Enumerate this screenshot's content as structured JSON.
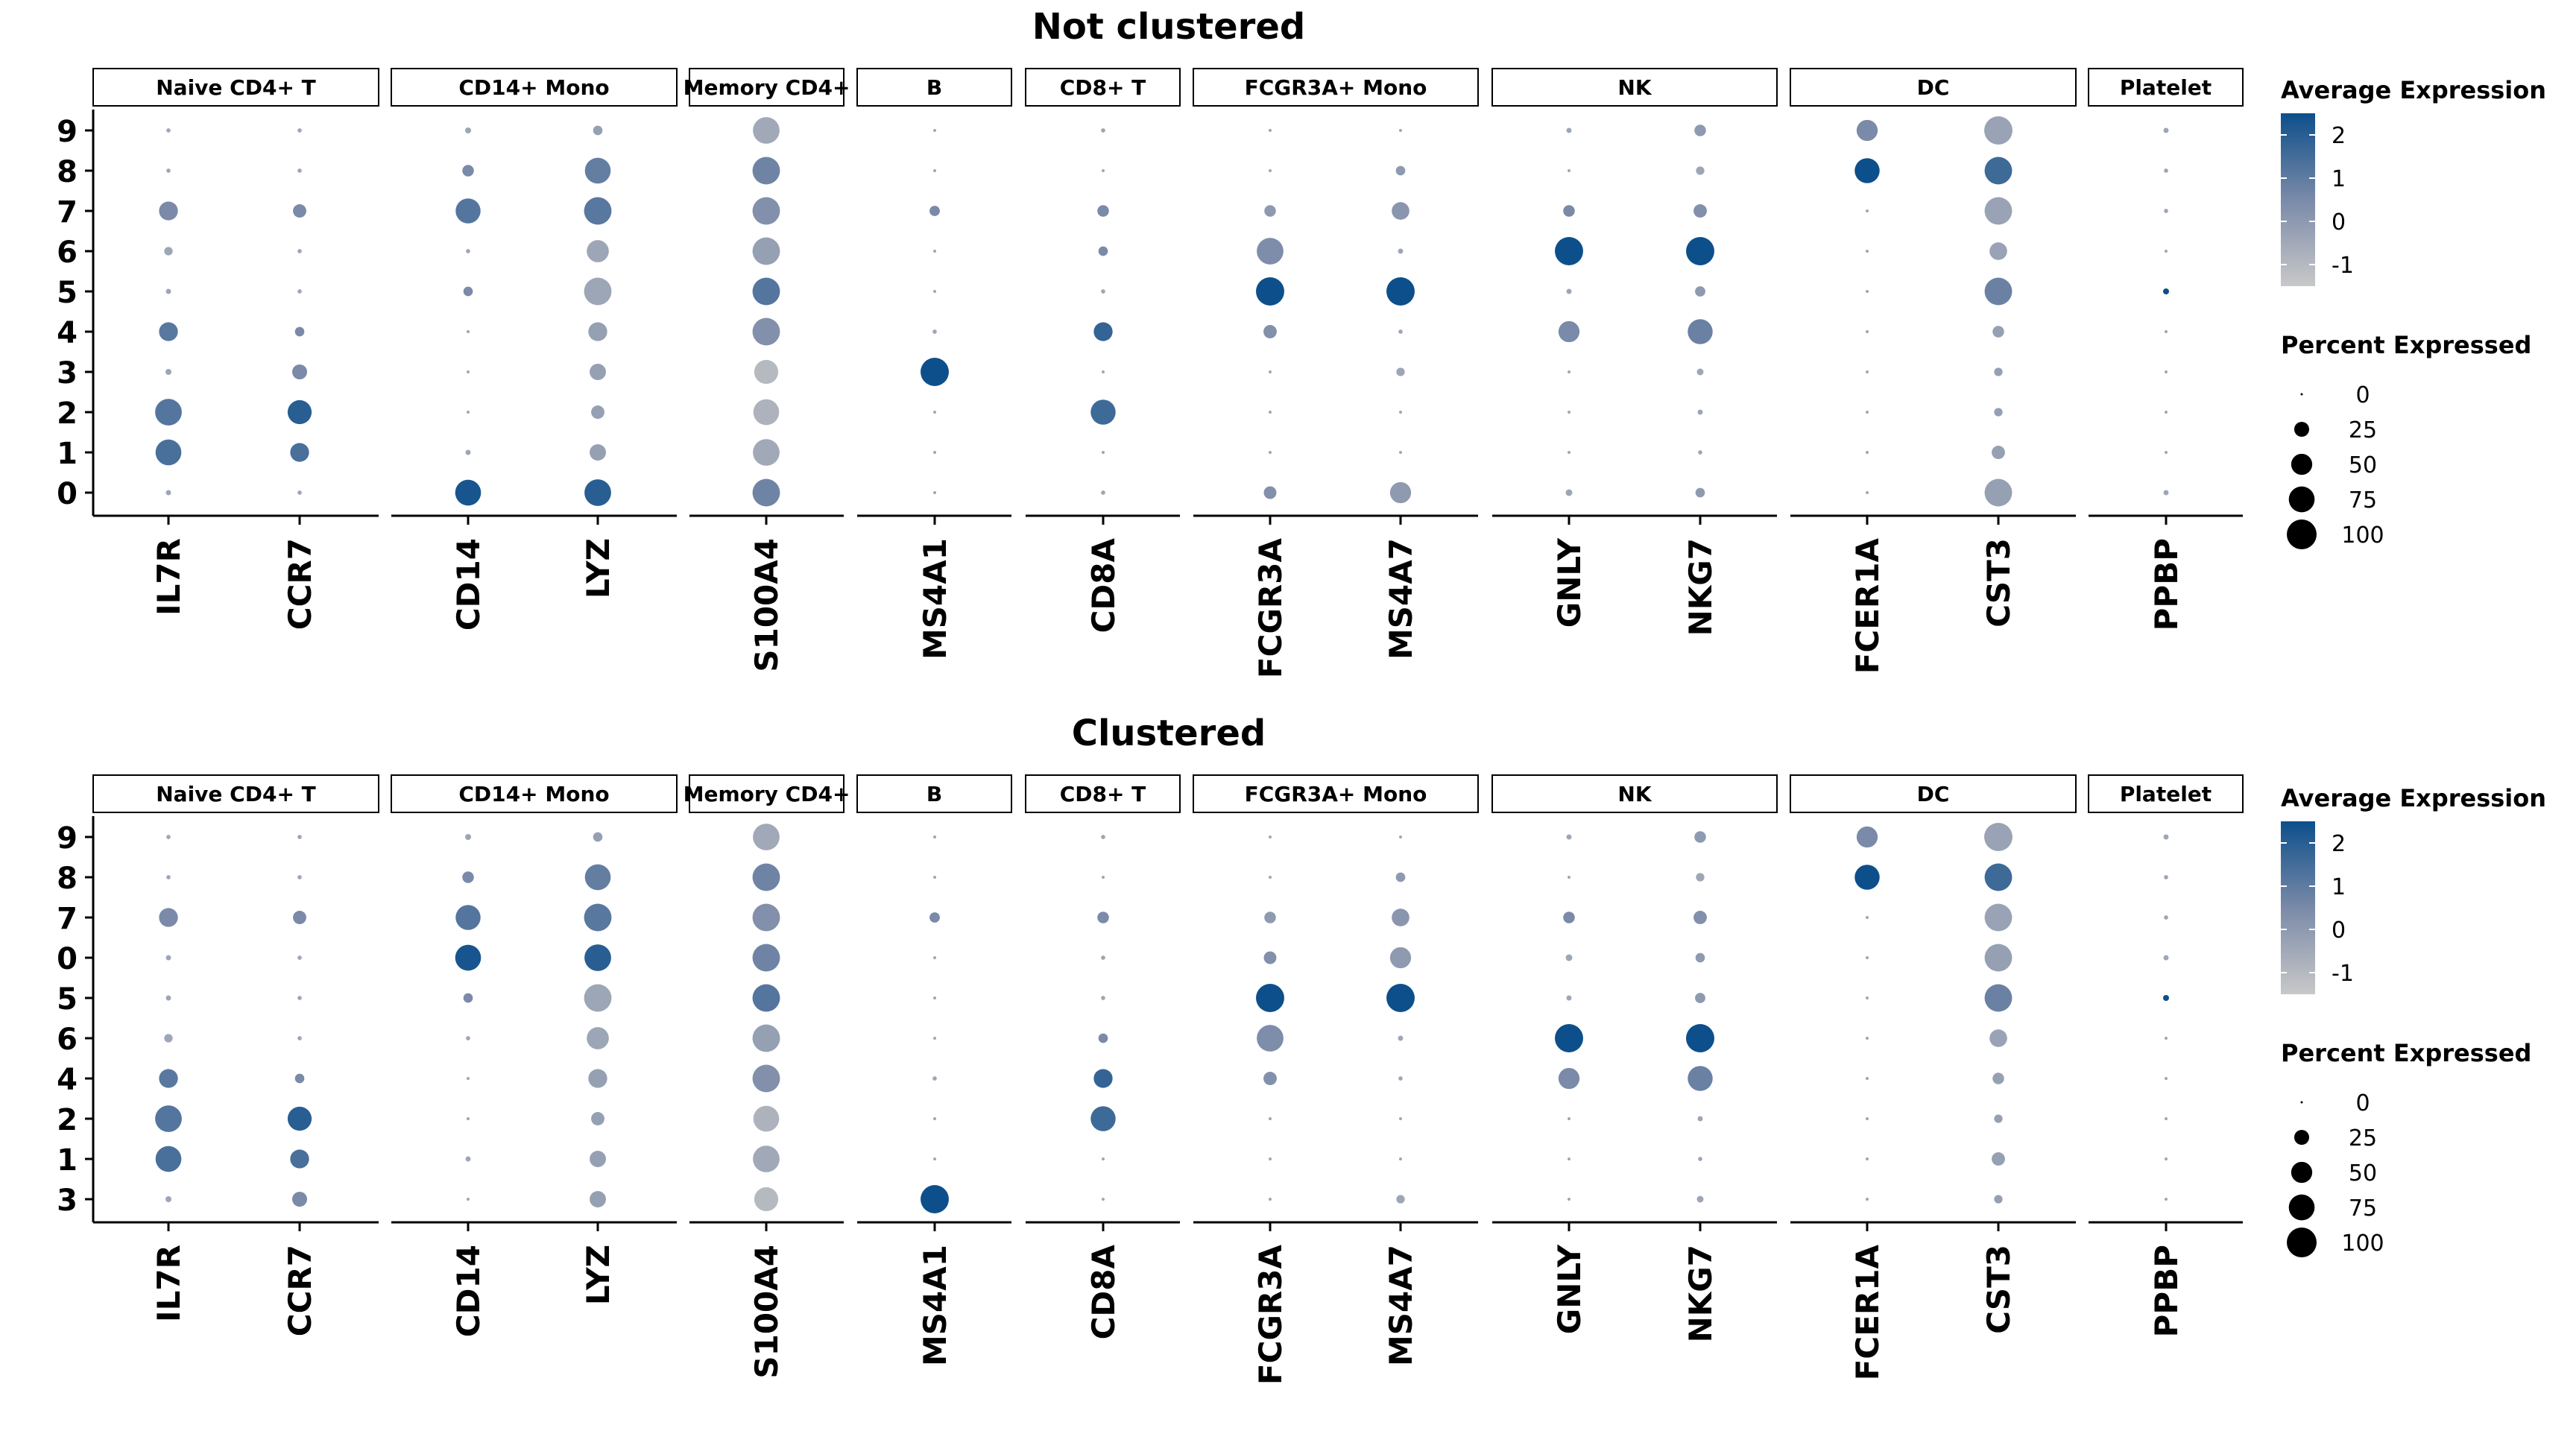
{
  "chart_data": [
    {
      "type": "dotplot",
      "title": "Not clustered",
      "y_order": [
        "9",
        "8",
        "7",
        "6",
        "5",
        "4",
        "3",
        "2",
        "1",
        "0"
      ],
      "facets": [
        {
          "label": "Naive CD4+ T",
          "genes": [
            "IL7R",
            "CCR7"
          ]
        },
        {
          "label": "CD14+ Mono",
          "genes": [
            "CD14",
            "LYZ"
          ]
        },
        {
          "label": "Memory CD4+",
          "genes": [
            "S100A4"
          ]
        },
        {
          "label": "B",
          "genes": [
            "MS4A1"
          ]
        },
        {
          "label": "CD8+ T",
          "genes": [
            "CD8A"
          ]
        },
        {
          "label": "FCGR3A+ Mono",
          "genes": [
            "FCGR3A",
            "MS4A7"
          ]
        },
        {
          "label": "NK",
          "genes": [
            "GNLY",
            "NKG7"
          ]
        },
        {
          "label": "DC",
          "genes": [
            "FCER1A",
            "CST3"
          ]
        },
        {
          "label": "Platelet",
          "genes": [
            "PPBP"
          ]
        }
      ],
      "points": {
        "IL7R": {
          "9": [
            2,
            -0.4
          ],
          "8": [
            2,
            -0.4
          ],
          "7": [
            40,
            0.5
          ],
          "6": [
            8,
            -0.4
          ],
          "5": [
            3,
            -0.4
          ],
          "4": [
            40,
            1.1
          ],
          "3": [
            4,
            -0.4
          ],
          "2": [
            80,
            1.2
          ],
          "1": [
            75,
            1.4
          ],
          "0": [
            3,
            -0.4
          ]
        },
        "CCR7": {
          "9": [
            2,
            -0.4
          ],
          "8": [
            2,
            -0.4
          ],
          "7": [
            20,
            0.5
          ],
          "6": [
            2,
            -0.4
          ],
          "5": [
            2,
            -0.4
          ],
          "4": [
            10,
            0.5
          ],
          "3": [
            25,
            0.5
          ],
          "2": [
            65,
            2.0
          ],
          "1": [
            40,
            1.4
          ],
          "0": [
            2,
            -0.4
          ]
        },
        "CD14": {
          "9": [
            4,
            -0.4
          ],
          "8": [
            15,
            0.5
          ],
          "7": [
            70,
            1.2
          ],
          "6": [
            2,
            -0.4
          ],
          "5": [
            10,
            0.5
          ],
          "4": [
            1,
            -0.4
          ],
          "3": [
            1,
            -0.4
          ],
          "2": [
            1,
            -0.4
          ],
          "1": [
            3,
            -0.4
          ],
          "0": [
            75,
            2.3
          ]
        },
        "LYZ": {
          "9": [
            10,
            -0.2
          ],
          "8": [
            75,
            0.9
          ],
          "7": [
            85,
            1.1
          ],
          "6": [
            55,
            -0.4
          ],
          "5": [
            85,
            -0.4
          ],
          "4": [
            40,
            -0.2
          ],
          "3": [
            30,
            -0.2
          ],
          "2": [
            20,
            -0.2
          ],
          "1": [
            30,
            -0.2
          ],
          "0": [
            80,
            2.0
          ]
        },
        "S100A4": {
          "9": [
            80,
            -0.5
          ],
          "8": [
            85,
            0.7
          ],
          "7": [
            85,
            0.3
          ],
          "6": [
            85,
            -0.2
          ],
          "5": [
            85,
            1.2
          ],
          "4": [
            85,
            0.3
          ],
          "3": [
            65,
            -1.0
          ],
          "2": [
            75,
            -0.8
          ],
          "1": [
            80,
            -0.5
          ],
          "0": [
            85,
            0.7
          ]
        },
        "MS4A1": {
          "9": [
            1,
            -0.4
          ],
          "8": [
            1,
            -0.4
          ],
          "7": [
            12,
            0.5
          ],
          "6": [
            1,
            -0.4
          ],
          "5": [
            1,
            -0.4
          ],
          "4": [
            2,
            -0.4
          ],
          "3": [
            90,
            2.5
          ],
          "2": [
            1,
            -0.4
          ],
          "1": [
            1,
            -0.4
          ],
          "0": [
            1,
            -0.4
          ]
        },
        "CD8A": {
          "9": [
            2,
            -0.4
          ],
          "8": [
            1,
            -0.4
          ],
          "7": [
            15,
            0.5
          ],
          "6": [
            10,
            0.5
          ],
          "5": [
            2,
            -0.4
          ],
          "4": [
            40,
            1.8
          ],
          "3": [
            1,
            -0.4
          ],
          "2": [
            70,
            1.6
          ],
          "1": [
            1,
            -0.4
          ],
          "0": [
            2,
            -0.4
          ]
        },
        "FCGR3A": {
          "9": [
            1,
            -0.4
          ],
          "8": [
            1,
            -0.4
          ],
          "7": [
            15,
            0.0
          ],
          "6": [
            80,
            0.4
          ],
          "5": [
            90,
            2.5
          ],
          "4": [
            20,
            0.3
          ],
          "3": [
            1,
            -0.4
          ],
          "2": [
            1,
            -0.4
          ],
          "1": [
            1,
            -0.4
          ],
          "0": [
            18,
            0.3
          ]
        },
        "MS4A7": {
          "9": [
            1,
            -0.4
          ],
          "8": [
            10,
            0.0
          ],
          "7": [
            35,
            0.1
          ],
          "6": [
            3,
            -0.4
          ],
          "5": [
            90,
            2.5
          ],
          "4": [
            2,
            -0.4
          ],
          "3": [
            8,
            -0.4
          ],
          "2": [
            1,
            -0.4
          ],
          "1": [
            1,
            -0.4
          ],
          "0": [
            50,
            0.0
          ]
        },
        "GNLY": {
          "9": [
            3,
            -0.4
          ],
          "8": [
            1,
            -0.4
          ],
          "7": [
            15,
            0.5
          ],
          "6": [
            90,
            2.5
          ],
          "5": [
            3,
            -0.4
          ],
          "4": [
            50,
            0.5
          ],
          "3": [
            1,
            -0.4
          ],
          "2": [
            1,
            -0.4
          ],
          "1": [
            1,
            -0.4
          ],
          "0": [
            5,
            -0.4
          ]
        },
        "NKG7": {
          "9": [
            15,
            0.0
          ],
          "8": [
            8,
            -0.4
          ],
          "7": [
            20,
            0.3
          ],
          "6": [
            90,
            2.5
          ],
          "5": [
            12,
            0.0
          ],
          "4": [
            70,
            0.8
          ],
          "3": [
            5,
            -0.4
          ],
          "2": [
            3,
            -0.4
          ],
          "1": [
            2,
            -0.4
          ],
          "0": [
            10,
            0.0
          ]
        },
        "FCER1A": {
          "9": [
            50,
            0.5
          ],
          "8": [
            70,
            2.5
          ],
          "7": [
            1,
            -0.4
          ],
          "6": [
            1,
            -0.4
          ],
          "5": [
            1,
            -0.4
          ],
          "4": [
            1,
            -0.4
          ],
          "3": [
            1,
            -0.4
          ],
          "2": [
            1,
            -0.4
          ],
          "1": [
            1,
            -0.4
          ],
          "0": [
            1,
            -0.4
          ]
        },
        "CST3": {
          "9": [
            90,
            -0.3
          ],
          "8": [
            85,
            1.6
          ],
          "7": [
            85,
            -0.3
          ],
          "6": [
            35,
            -0.3
          ],
          "5": [
            85,
            0.8
          ],
          "4": [
            15,
            -0.2
          ],
          "3": [
            8,
            -0.2
          ],
          "2": [
            8,
            -0.2
          ],
          "1": [
            20,
            -0.2
          ],
          "0": [
            85,
            -0.2
          ]
        },
        "PPBP": {
          "9": [
            3,
            -0.4
          ],
          "8": [
            2,
            -0.4
          ],
          "7": [
            2,
            -0.4
          ],
          "6": [
            1,
            -0.4
          ],
          "5": [
            4,
            2.5
          ],
          "4": [
            1,
            -0.4
          ],
          "3": [
            1,
            -0.4
          ],
          "2": [
            1,
            -0.4
          ],
          "1": [
            1,
            -0.4
          ],
          "0": [
            3,
            -0.4
          ]
        }
      },
      "color_legend": {
        "title": "Average Expression",
        "ticks": [
          "2",
          "1",
          "0",
          "-1"
        ],
        "range": [
          -1.5,
          2.5
        ]
      },
      "size_legend": {
        "title": "Percent Expressed",
        "labels": [
          "0",
          "25",
          "50",
          "75",
          "100"
        ]
      }
    },
    {
      "type": "dotplot",
      "title": "Clustered",
      "y_order": [
        "9",
        "8",
        "7",
        "0",
        "5",
        "6",
        "4",
        "2",
        "1",
        "3"
      ],
      "facets": [
        {
          "label": "Naive CD4+ T",
          "genes": [
            "IL7R",
            "CCR7"
          ]
        },
        {
          "label": "CD14+ Mono",
          "genes": [
            "CD14",
            "LYZ"
          ]
        },
        {
          "label": "Memory CD4+",
          "genes": [
            "S100A4"
          ]
        },
        {
          "label": "B",
          "genes": [
            "MS4A1"
          ]
        },
        {
          "label": "CD8+ T",
          "genes": [
            "CD8A"
          ]
        },
        {
          "label": "FCGR3A+ Mono",
          "genes": [
            "FCGR3A",
            "MS4A7"
          ]
        },
        {
          "label": "NK",
          "genes": [
            "GNLY",
            "NKG7"
          ]
        },
        {
          "label": "DC",
          "genes": [
            "FCER1A",
            "CST3"
          ]
        },
        {
          "label": "Platelet",
          "genes": [
            "PPBP"
          ]
        }
      ],
      "points": "same_as_first",
      "color_legend": {
        "title": "Average Expression",
        "ticks": [
          "2",
          "1",
          "0",
          "-1"
        ],
        "range": [
          -1.5,
          2.5
        ]
      },
      "size_legend": {
        "title": "Percent Expressed",
        "labels": [
          "0",
          "25",
          "50",
          "75",
          "100"
        ]
      }
    }
  ],
  "colors": {
    "high": "#0d4f8b",
    "mid": "#7a8aa8",
    "low": "#c8c8c8"
  }
}
